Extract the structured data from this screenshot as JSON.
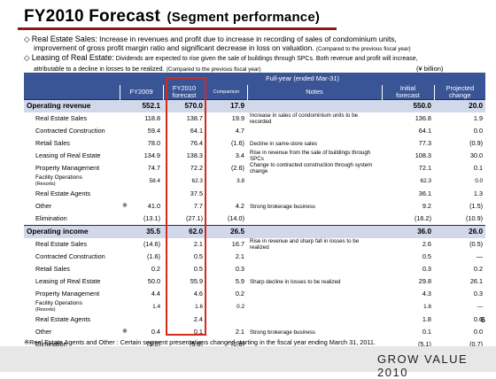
{
  "title": {
    "main": "FY2010 Forecast",
    "sub": "(Segment performance)"
  },
  "bullets": [
    {
      "symbol": "◇",
      "head": "Real Estate Sales:",
      "line1": " Increase in revenues and profit due to increase in recording of sales of condominium units,",
      "line2": "improvement of gross profit margin ratio and significant decrease in loss on valuation.",
      "note": "(Compared to the previous fiscal year)"
    },
    {
      "symbol": "◇",
      "head": "Leasing of Real Estate:",
      "line1": " Dividends are expected to rise given the sale of buildings through SPCs. Both revenue and profit will increase,",
      "line2": "attributable to a decline in losses to be realized.",
      "note": "(Compared to the previous fiscal year)"
    }
  ],
  "unit": "(¥ billion)",
  "table": {
    "period_header": "Full-year (ended Mar-31)",
    "columns": {
      "fy2009": "FY2009",
      "fy2010_line1": "FY2010",
      "fy2010_line2": "forecast",
      "comparison": "Comparison",
      "notes": "Notes",
      "initial_line1": "Initial",
      "initial_line2": "forecast",
      "projected_line1": "Projected",
      "projected_line2": "change"
    },
    "rows": [
      {
        "label": "Operating revenue",
        "mark": "",
        "fy2009": "552.1",
        "fy2010": "570.0",
        "comp": "17.9",
        "notes": "",
        "initial": "550.0",
        "change": "20.0",
        "type": "section"
      },
      {
        "label": "Real Estate Sales",
        "mark": "",
        "fy2009": "118.8",
        "fy2010": "138.7",
        "comp": "19.9",
        "notes": "Increase in sales of condominium units to be recorded",
        "initial": "136.8",
        "change": "1.9",
        "type": "row"
      },
      {
        "label": "Contracted Construction",
        "mark": "",
        "fy2009": "59.4",
        "fy2010": "64.1",
        "comp": "4.7",
        "notes": "",
        "initial": "64.1",
        "change": "0.0",
        "type": "row"
      },
      {
        "label": "Retail Sales",
        "mark": "",
        "fy2009": "78.0",
        "fy2010": "76.4",
        "comp": "(1.6)",
        "notes": "Decline in same-store sales",
        "initial": "77.3",
        "change": "(0.9)",
        "type": "row"
      },
      {
        "label": "Leasing of Real Estate",
        "mark": "",
        "fy2009": "134.9",
        "fy2010": "138.3",
        "comp": "3.4",
        "notes": "Rise in revenue from the sale of buildings through SPCs",
        "initial": "108.3",
        "change": "30.0",
        "type": "row"
      },
      {
        "label": "Property Management",
        "mark": "",
        "fy2009": "74.7",
        "fy2010": "72.2",
        "comp": "(2.6)",
        "notes": "Change to contracted construction through system change",
        "initial": "72.1",
        "change": "0.1",
        "type": "row"
      },
      {
        "label": "Facility Operations",
        "label2": "(Resorts)",
        "mark": "",
        "fy2009": "58.4",
        "fy2010": "62.3",
        "comp": "3.8",
        "notes": "",
        "initial": "62.3",
        "change": "0.0",
        "type": "row"
      },
      {
        "label": "Real Estate Agents",
        "mark": "",
        "fy2009": "",
        "fy2010": "37.5",
        "comp": "",
        "notes": "",
        "initial": "36.1",
        "change": "1.3",
        "type": "row"
      },
      {
        "label": "Other",
        "mark": "※",
        "fy2009": "41.0",
        "fy2010": "7.7",
        "comp": "4.2",
        "notes": "Strong brokerage business",
        "initial": "9.2",
        "change": "(1.5)",
        "type": "row"
      },
      {
        "label": "Elimination",
        "mark": "",
        "fy2009": "(13.1)",
        "fy2010": "(27.1)",
        "comp": "(14.0)",
        "notes": "",
        "initial": "(16.2)",
        "change": "(10.9)",
        "type": "row"
      },
      {
        "label": "Operating income",
        "mark": "",
        "fy2009": "35.5",
        "fy2010": "62.0",
        "comp": "26.5",
        "notes": "",
        "initial": "36.0",
        "change": "26.0",
        "type": "section"
      },
      {
        "label": "Real Estate Sales",
        "mark": "",
        "fy2009": "(14.6)",
        "fy2010": "2.1",
        "comp": "16.7",
        "notes": "Rise in revenue and sharp fall in losses to be realized",
        "initial": "2.6",
        "change": "(0.5)",
        "type": "row"
      },
      {
        "label": "Contracted Construction",
        "mark": "",
        "fy2009": "(1.6)",
        "fy2010": "0.5",
        "comp": "2.1",
        "notes": "",
        "initial": "0.5",
        "change": "―",
        "type": "row"
      },
      {
        "label": "Retail Sales",
        "mark": "",
        "fy2009": "0.2",
        "fy2010": "0.5",
        "comp": "0.3",
        "notes": "",
        "initial": "0.3",
        "change": "0.2",
        "type": "row"
      },
      {
        "label": "Leasing of Real Estate",
        "mark": "",
        "fy2009": "50.0",
        "fy2010": "55.9",
        "comp": "5.9",
        "notes": "Sharp decline in losses to be realized",
        "initial": "29.8",
        "change": "26.1",
        "type": "row"
      },
      {
        "label": "Property Management",
        "mark": "",
        "fy2009": "4.4",
        "fy2010": "4.6",
        "comp": "0.2",
        "notes": "",
        "initial": "4.3",
        "change": "0.3",
        "type": "row"
      },
      {
        "label": "Facility Operations",
        "label2": "(Resorts)",
        "mark": "",
        "fy2009": "1.4",
        "fy2010": "1.6",
        "comp": "0.2",
        "notes": "",
        "initial": "1.6",
        "change": "―",
        "type": "row"
      },
      {
        "label": "Real Estate Agents",
        "mark": "",
        "fy2009": "",
        "fy2010": "2.4",
        "comp": "",
        "notes": "",
        "initial": "1.8",
        "change": "0.6",
        "type": "row"
      },
      {
        "label": "Other",
        "mark": "※",
        "fy2009": "0.4",
        "fy2010": "0.1",
        "comp": "2.1",
        "notes": "Strong brokerage business",
        "initial": "0.1",
        "change": "0.0",
        "type": "row"
      },
      {
        "label": "Elimination",
        "mark": "",
        "fy2009": "(5.0)",
        "fy2010": "(5.8)",
        "comp": "(0.8)",
        "notes": "",
        "initial": "(5.1)",
        "change": "(0.7)",
        "type": "row"
      }
    ]
  },
  "footnote": "※Real Estate Agents and Other : Certain segment presentations changed starting in the fiscal year ending March 31, 2011.",
  "brand": "GROW VALUE 2010",
  "page_number": "6",
  "colors": {
    "header_blue": "#3a5596",
    "section_band": "#d0d8ea",
    "highlight_red": "#d42a1e",
    "title_rule": "#8a1a1a"
  }
}
